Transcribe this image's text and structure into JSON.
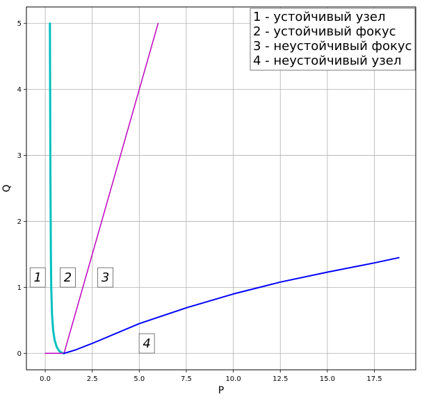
{
  "chart_data": {
    "type": "line",
    "title": "",
    "xlabel": "P",
    "ylabel": "Q",
    "xlim": [
      -1.0,
      19.7
    ],
    "ylim": [
      -0.25,
      5.25
    ],
    "xticks": [
      0.0,
      2.5,
      5.0,
      7.5,
      10.0,
      12.5,
      15.0,
      17.5
    ],
    "xtick_labels": [
      "0.0",
      "2.5",
      "5.0",
      "7.5",
      "10.0",
      "12.5",
      "15.0",
      "17.5"
    ],
    "yticks": [
      0,
      1,
      2,
      3,
      4,
      5
    ],
    "ytick_labels": [
      "0",
      "1",
      "2",
      "3",
      "4",
      "5"
    ],
    "grid": true,
    "legend_position": "top-right",
    "legend_lines": [
      "1 - устойчивый узел",
      "2 - устойчивый фокус",
      "3 - неустойчивый фокус",
      "4 - неустойчивый узел"
    ],
    "region_labels": [
      {
        "text": "1",
        "x": -0.4,
        "y": 1.15
      },
      {
        "text": "2",
        "x": 1.2,
        "y": 1.15
      },
      {
        "text": "3",
        "x": 3.2,
        "y": 1.15
      },
      {
        "text": "4",
        "x": 5.4,
        "y": 0.15
      }
    ],
    "series": [
      {
        "color": "#00bfbf",
        "points": [
          [
            0.25,
            5.0
          ],
          [
            0.26,
            4.0
          ],
          [
            0.27,
            3.0
          ],
          [
            0.28,
            2.5
          ],
          [
            0.3,
            1.5
          ],
          [
            0.32,
            1.0
          ],
          [
            0.36,
            0.6
          ],
          [
            0.42,
            0.35
          ],
          [
            0.5,
            0.2
          ],
          [
            0.62,
            0.09
          ],
          [
            0.76,
            0.03
          ],
          [
            0.9,
            0.005
          ],
          [
            1.0,
            0.0
          ]
        ]
      },
      {
        "color": "#bf00bf",
        "points": [
          [
            0.0,
            0.0
          ],
          [
            1.0,
            0.0
          ]
        ]
      },
      {
        "color": "#bf00bf",
        "points": [
          [
            1.0,
            0.0
          ],
          [
            6.0,
            5.0
          ]
        ]
      },
      {
        "color": "#0000ff",
        "points": [
          [
            1.0,
            0.0
          ],
          [
            1.6,
            0.05
          ],
          [
            2.5,
            0.15
          ],
          [
            5.0,
            0.45
          ],
          [
            7.5,
            0.69
          ],
          [
            10.0,
            0.9
          ],
          [
            12.5,
            1.08
          ],
          [
            15.0,
            1.23
          ],
          [
            17.5,
            1.37
          ],
          [
            18.8,
            1.45
          ]
        ]
      }
    ]
  }
}
